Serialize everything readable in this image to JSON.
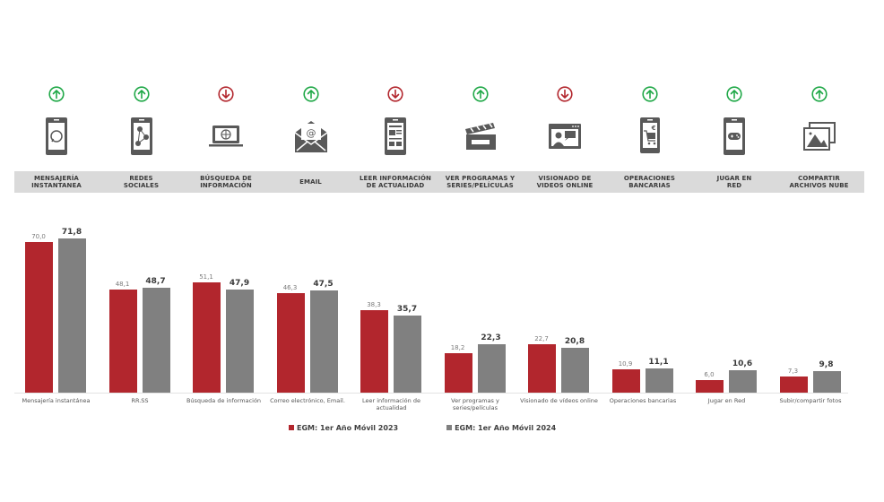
{
  "icons_row": [
    {
      "label": "MENSAJERÍA\nINSTANTANEA",
      "trend": "up",
      "icon": "whatsapp-phone-icon"
    },
    {
      "label": "REDES\nSOCIALES",
      "trend": "up",
      "icon": "social-network-phone-icon"
    },
    {
      "label": "BÚSQUEDA DE\nINFORMACIÓN",
      "trend": "down",
      "icon": "laptop-globe-icon"
    },
    {
      "label": "EMAIL",
      "trend": "up",
      "icon": "email-envelope-icon"
    },
    {
      "label": "LEER INFORMACIÓN\nDE ACTUALIDAD",
      "trend": "down",
      "icon": "news-phone-icon"
    },
    {
      "label": "VER PROGRAMAS Y\nSERIES/PELÍCULAS",
      "trend": "up",
      "icon": "clapperboard-icon"
    },
    {
      "label": "VISIONADO DE\nVIDEOS ONLINE",
      "trend": "down",
      "icon": "video-window-icon"
    },
    {
      "label": "OPERACIONES\nBANCARIAS",
      "trend": "up",
      "icon": "banking-cart-phone-icon"
    },
    {
      "label": "JUGAR EN\nRED",
      "trend": "up",
      "icon": "gamepad-phone-icon"
    },
    {
      "label": "COMPARTIR\nARCHIVOS NUBE",
      "trend": "up",
      "icon": "photos-stack-icon"
    }
  ],
  "colors": {
    "series_2023": "#b2262d",
    "series_2024": "#808080",
    "trend_up": "#1fa847",
    "trend_down": "#b2262d",
    "band": "#dadada",
    "icon": "#595959"
  },
  "legend": {
    "series_2023": "EGM: 1er Año Móvil 2023",
    "series_2024": "EGM: 1er Año Móvil 2024"
  },
  "chart_data": {
    "type": "bar",
    "title": "",
    "xlabel": "",
    "ylabel": "",
    "ylim": [
      0,
      75
    ],
    "grid": false,
    "legend_position": "bottom",
    "categories": [
      "Mensajería instantánea",
      "RR.SS",
      "Búsqueda de información",
      "Correo electrónico, Email.",
      "Leer información de\nactualidad",
      "Ver programas y\nseries/películas",
      "Visionado de vídeos online",
      "Operaciones bancarias",
      "Jugar en Red",
      "Subir/compartir fotos"
    ],
    "series": [
      {
        "name": "EGM: 1er Año Móvil 2023",
        "values": [
          70.0,
          48.1,
          51.1,
          46.3,
          38.3,
          18.2,
          22.7,
          10.9,
          6.0,
          7.3
        ],
        "labels": [
          "70,0",
          "48,1",
          "51,1",
          "46,3",
          "38,3",
          "18,2",
          "22,7",
          "10,9",
          "6,0",
          "7,3"
        ]
      },
      {
        "name": "EGM: 1er Año Móvil 2024",
        "values": [
          71.8,
          48.7,
          47.9,
          47.5,
          35.7,
          22.3,
          20.8,
          11.1,
          10.6,
          9.8
        ],
        "labels": [
          "71,8",
          "48,7",
          "47,9",
          "47,5",
          "35,7",
          "22,3",
          "20,8",
          "11,1",
          "10,6",
          "9,8"
        ]
      }
    ]
  }
}
